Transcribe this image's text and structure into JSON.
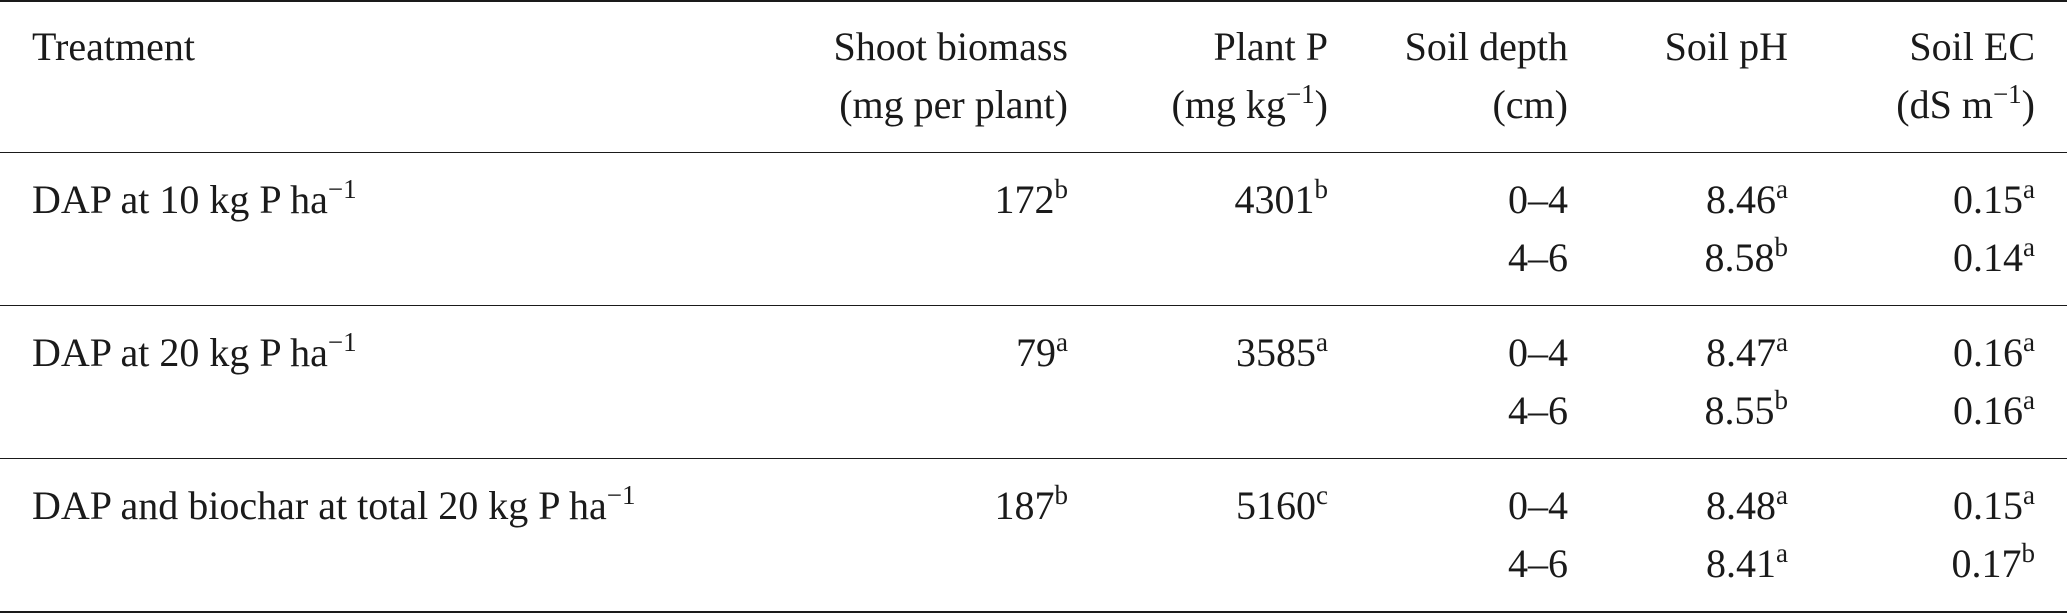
{
  "headers": {
    "treatment": "Treatment",
    "shoot_biomass": {
      "line1": "Shoot biomass",
      "line2": "(mg per plant)"
    },
    "plant_p": {
      "line1": "Plant P",
      "line2_pre": "(mg kg",
      "line2_sup": "−1",
      "line2_post": ")"
    },
    "soil_depth": {
      "line1": "Soil depth",
      "line2": "(cm)"
    },
    "soil_ph": {
      "line1": "Soil pH"
    },
    "soil_ec": {
      "line1": "Soil EC",
      "line2_pre": "(dS m",
      "line2_sup": "−1",
      "line2_post": ")"
    }
  },
  "rows": [
    {
      "treatment": "DAP at 10 kg P ha",
      "treatment_sup": "−1",
      "shoot": "172",
      "shoot_sup": "b",
      "plant_p": "4301",
      "plant_p_sup": "b",
      "depths": [
        {
          "depth": "0–4",
          "ph": "8.46",
          "ph_sup": "a",
          "ec": "0.15",
          "ec_sup": "a"
        },
        {
          "depth": "4–6",
          "ph": "8.58",
          "ph_sup": "b",
          "ec": "0.14",
          "ec_sup": "a"
        }
      ]
    },
    {
      "treatment": "DAP at 20 kg P ha",
      "treatment_sup": "−1",
      "shoot": "79",
      "shoot_sup": "a",
      "plant_p": "3585",
      "plant_p_sup": "a",
      "depths": [
        {
          "depth": "0–4",
          "ph": "8.47",
          "ph_sup": "a",
          "ec": "0.16",
          "ec_sup": "a"
        },
        {
          "depth": "4–6",
          "ph": "8.55",
          "ph_sup": "b",
          "ec": "0.16",
          "ec_sup": "a"
        }
      ]
    },
    {
      "treatment": "DAP and biochar at total 20 kg P ha",
      "treatment_sup": "−1",
      "shoot": "187",
      "shoot_sup": "b",
      "plant_p": "5160",
      "plant_p_sup": "c",
      "depths": [
        {
          "depth": "0–4",
          "ph": "8.48",
          "ph_sup": "a",
          "ec": "0.15",
          "ec_sup": "a"
        },
        {
          "depth": "4–6",
          "ph": "8.41",
          "ph_sup": "a",
          "ec": "0.17",
          "ec_sup": "b"
        }
      ]
    }
  ]
}
